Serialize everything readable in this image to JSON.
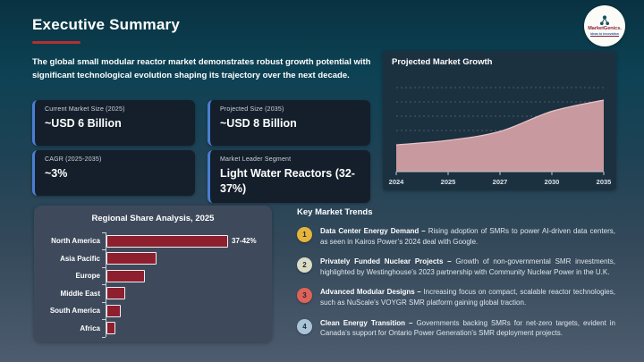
{
  "slide": {
    "title": "Executive Summary",
    "accent_color": "#b13030",
    "intro": "The global small modular reactor market demonstrates robust growth potential with significant technological evolution shaping its trajectory over the next decade."
  },
  "logo": {
    "name": "MarketGenics.",
    "tagline": "Ideas to Innovation"
  },
  "stats": [
    {
      "label": "Current Market Size (2025)",
      "value": "~USD 6 Billion"
    },
    {
      "label": "Projected Size (2035)",
      "value": "~USD 8 Billion"
    },
    {
      "label": "CAGR (2025-2035)",
      "value": "~3%"
    },
    {
      "label": "Market Leader Segment",
      "value": "Light Water Reactors (32-37%)"
    }
  ],
  "chart_data": [
    {
      "type": "area",
      "title": "Projected Market Growth",
      "x": [
        "2024",
        "2025",
        "2027",
        "2030",
        "2035"
      ],
      "values": [
        6.0,
        6.2,
        6.6,
        7.5,
        8.0
      ],
      "ylabel": "Market size, USD Billion (implied ~6B to ~8B)",
      "ylim": [
        4.8,
        8.0
      ],
      "grid": "dashed horizontal, no y tick labels",
      "fill_color": "#d09da4",
      "line_color": "#e9c6ca"
    },
    {
      "type": "bar",
      "title": "Regional Share Analysis, 2025",
      "orientation": "horizontal",
      "categories": [
        "North America",
        "Asia Pacific",
        "Europe",
        "Middle East",
        "South America",
        "Africa"
      ],
      "values": [
        39.5,
        16,
        12,
        5.5,
        4,
        2.5
      ],
      "value_labels": [
        "37-42%",
        "",
        "",
        "",
        "",
        ""
      ],
      "xlabel": "share %, only North America labeled",
      "bar_color": "#8e1f2e",
      "bar_border_color": "#eceff1"
    }
  ],
  "trends": {
    "heading": "Key Market Trends",
    "items": [
      {
        "num": "1",
        "color": "#e5b43d",
        "lead": "Data Center Energy Demand –",
        "text": "Rising adoption of SMRs to power AI-driven data centers, as seen in Kairos Power’s 2024 deal with Google."
      },
      {
        "num": "2",
        "color": "#dadcc6",
        "lead": "Privately Funded Nuclear Projects –",
        "text": "Growth of non-governmental SMR investments, highlighted by Westinghouse’s 2023 partnership with Community Nuclear Power in the U.K."
      },
      {
        "num": "3",
        "color": "#dd6257",
        "lead": "Advanced Modular Designs –",
        "text": "Increasing focus on compact, scalable reactor technologies, such as NuScale’s VOYGR SMR platform gaining global traction."
      },
      {
        "num": "4",
        "color": "#a9c4d7",
        "lead": "Clean Energy Transition –",
        "text": "Governments backing SMRs for net-zero targets, evident in Canada’s support for Ontario Power Generation’s SMR deployment projects."
      }
    ]
  }
}
